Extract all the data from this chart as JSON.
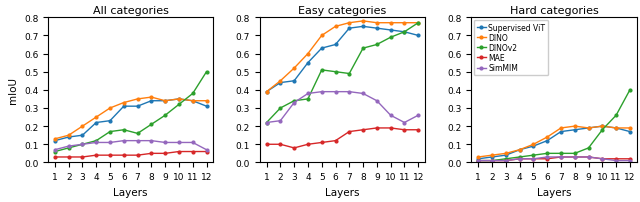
{
  "layers": [
    1,
    2,
    3,
    4,
    5,
    6,
    7,
    8,
    9,
    10,
    11,
    12
  ],
  "all_categories": {
    "Supervised ViT": [
      0.12,
      0.14,
      0.15,
      0.22,
      0.23,
      0.31,
      0.31,
      0.34,
      0.34,
      0.35,
      0.34,
      0.31
    ],
    "DINO": [
      0.13,
      0.15,
      0.2,
      0.25,
      0.3,
      0.33,
      0.35,
      0.36,
      0.34,
      0.35,
      0.34,
      0.34
    ],
    "DINOv2": [
      0.06,
      0.08,
      0.1,
      0.12,
      0.17,
      0.18,
      0.16,
      0.21,
      0.26,
      0.32,
      0.38,
      0.5
    ],
    "MAE": [
      0.03,
      0.03,
      0.03,
      0.04,
      0.04,
      0.04,
      0.04,
      0.05,
      0.05,
      0.06,
      0.06,
      0.06
    ],
    "SimMIM": [
      0.07,
      0.09,
      0.1,
      0.11,
      0.11,
      0.12,
      0.12,
      0.12,
      0.11,
      0.11,
      0.11,
      0.07
    ]
  },
  "easy_categories": {
    "Supervised ViT": [
      0.39,
      0.44,
      0.45,
      0.55,
      0.63,
      0.65,
      0.74,
      0.75,
      0.74,
      0.73,
      0.72,
      0.7
    ],
    "DINO": [
      0.39,
      0.45,
      0.52,
      0.6,
      0.7,
      0.75,
      0.77,
      0.78,
      0.77,
      0.77,
      0.77,
      0.77
    ],
    "DINOv2": [
      0.22,
      0.3,
      0.34,
      0.35,
      0.51,
      0.5,
      0.49,
      0.63,
      0.65,
      0.69,
      0.72,
      0.77
    ],
    "MAE": [
      0.1,
      0.1,
      0.08,
      0.1,
      0.11,
      0.12,
      0.17,
      0.18,
      0.19,
      0.19,
      0.18,
      0.18
    ],
    "SimMIM": [
      0.22,
      0.23,
      0.33,
      0.38,
      0.39,
      0.39,
      0.39,
      0.38,
      0.34,
      0.26,
      0.22,
      0.26
    ]
  },
  "hard_categories": {
    "Supervised ViT": [
      0.02,
      0.03,
      0.04,
      0.07,
      0.09,
      0.12,
      0.17,
      0.18,
      0.19,
      0.2,
      0.19,
      0.17
    ],
    "DINO": [
      0.03,
      0.04,
      0.05,
      0.07,
      0.1,
      0.14,
      0.19,
      0.2,
      0.19,
      0.2,
      0.19,
      0.19
    ],
    "DINOv2": [
      0.01,
      0.01,
      0.02,
      0.03,
      0.04,
      0.05,
      0.05,
      0.05,
      0.08,
      0.18,
      0.26,
      0.4
    ],
    "MAE": [
      0.01,
      0.01,
      0.01,
      0.02,
      0.02,
      0.02,
      0.03,
      0.03,
      0.03,
      0.02,
      0.02,
      0.02
    ],
    "SimMIM": [
      0.01,
      0.01,
      0.01,
      0.02,
      0.02,
      0.03,
      0.03,
      0.03,
      0.03,
      0.02,
      0.01,
      0.01
    ]
  },
  "colors": {
    "Supervised ViT": "#1f77b4",
    "DINO": "#ff7f0e",
    "DINOv2": "#2ca02c",
    "MAE": "#d62728",
    "SimMIM": "#9467bd"
  },
  "titles": [
    "All categories",
    "Easy categories",
    "Hard categories"
  ],
  "ylabel": "mIoU",
  "xlabel": "Layers",
  "ylim": [
    0.0,
    0.8
  ],
  "yticks": [
    0.0,
    0.1,
    0.2,
    0.3,
    0.4,
    0.5,
    0.6,
    0.7,
    0.8
  ],
  "legend_order": [
    "Supervised ViT",
    "DINO",
    "DINOv2",
    "MAE",
    "SimMIM"
  ]
}
